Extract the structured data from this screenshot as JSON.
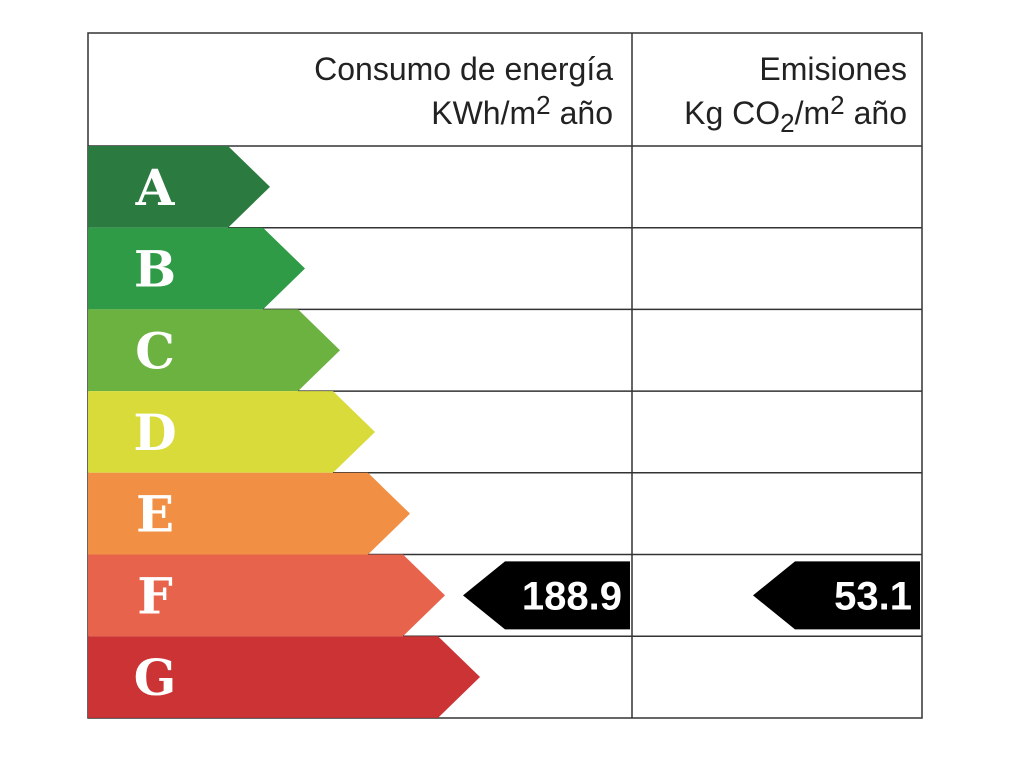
{
  "header": {
    "energy": {
      "title": "Consumo de energía",
      "unit": [
        "KWh/m",
        "2",
        "año"
      ]
    },
    "emissions": {
      "title": "Emisiones",
      "unit": [
        "Kg CO",
        "2",
        "/m",
        "2",
        "año"
      ]
    }
  },
  "classes": [
    {
      "letter": "A",
      "color": "#2b7a3f"
    },
    {
      "letter": "B",
      "color": "#2f9b46"
    },
    {
      "letter": "C",
      "color": "#6cb240"
    },
    {
      "letter": "D",
      "color": "#d8db3a"
    },
    {
      "letter": "E",
      "color": "#f19044"
    },
    {
      "letter": "F",
      "color": "#e8634b"
    },
    {
      "letter": "G",
      "color": "#cb3335"
    }
  ],
  "energy": {
    "class": "F",
    "value": 188.9
  },
  "emissions": {
    "class": "F",
    "value": 53.1
  }
}
